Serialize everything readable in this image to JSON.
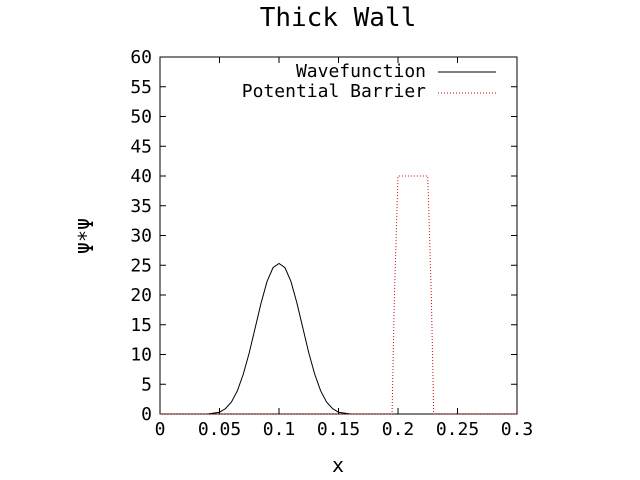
{
  "chart_data": {
    "type": "line",
    "title": "Thick Wall",
    "xlabel": "x",
    "ylabel": "Ψ*Ψ",
    "xlim": [
      0,
      0.3
    ],
    "ylim": [
      0,
      60
    ],
    "x_ticks": [
      "0",
      "0.05",
      "0.1",
      "0.15",
      "0.2",
      "0.25",
      "0.3"
    ],
    "x_tick_values": [
      0,
      0.05,
      0.1,
      0.15,
      0.2,
      0.25,
      0.3
    ],
    "y_ticks": [
      "0",
      "5",
      "10",
      "15",
      "20",
      "25",
      "30",
      "35",
      "40",
      "45",
      "50",
      "55",
      "60"
    ],
    "y_tick_values": [
      0,
      5,
      10,
      15,
      20,
      25,
      30,
      35,
      40,
      45,
      50,
      55,
      60
    ],
    "grid": false,
    "legend_position": "top-right",
    "series": [
      {
        "name": "Wavefunction",
        "color": "#000000",
        "style": "solid",
        "x": [
          0,
          0.04,
          0.05,
          0.055,
          0.06,
          0.065,
          0.07,
          0.075,
          0.08,
          0.085,
          0.09,
          0.095,
          0.1,
          0.105,
          0.11,
          0.115,
          0.12,
          0.125,
          0.13,
          0.135,
          0.14,
          0.145,
          0.15,
          0.16,
          0.3
        ],
        "y": [
          0,
          0.0,
          0.3,
          0.9,
          2.0,
          3.9,
          6.7,
          10.3,
          14.5,
          18.7,
          22.3,
          24.6,
          25.3,
          24.6,
          22.3,
          18.7,
          14.5,
          10.3,
          6.7,
          3.9,
          2.0,
          0.9,
          0.3,
          0.0,
          0
        ]
      },
      {
        "name": "Potential Barrier",
        "color": "#cc0000",
        "style": "dotted",
        "x": [
          0,
          0.195,
          0.197,
          0.2,
          0.225,
          0.228,
          0.23,
          0.3
        ],
        "y": [
          0,
          0,
          20,
          40,
          40,
          20,
          0,
          0
        ]
      }
    ]
  }
}
